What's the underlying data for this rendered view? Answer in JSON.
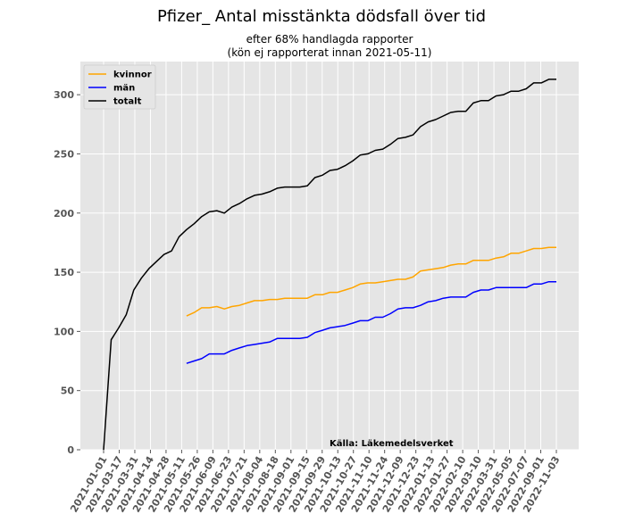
{
  "chart_data": {
    "type": "line",
    "title": "Pfizer_ Antal misstänkta dödsfall över tid",
    "subtitle_lines": [
      "efter 68% handlagda rapporter",
      "(kön ej rapporterat innan 2021-05-11)"
    ],
    "annotation": "Källa: Läkemedelsverket",
    "ylim": [
      0,
      328
    ],
    "y_ticks": [
      0,
      50,
      100,
      150,
      200,
      250,
      300
    ],
    "grid": true,
    "legend_position": "top-left",
    "x_tick_labels": [
      "2021-01-01",
      "2021-03-17",
      "2021-03-31",
      "2021-04-14",
      "2021-04-28",
      "2021-05-11",
      "2021-05-26",
      "2021-06-09",
      "2021-06-23",
      "2021-07-21",
      "2021-08-04",
      "2021-08-18",
      "2021-09-01",
      "2021-09-15",
      "2021-09-29",
      "2021-10-13",
      "2021-10-27",
      "2021-11-10",
      "2021-11-24",
      "2021-12-09",
      "2021-12-23",
      "2022-01-13",
      "2022-01-27",
      "2022-02-10",
      "2022-03-10",
      "2022-03-31",
      "2022-05-05",
      "2022-07-07",
      "2022-09-01",
      "2022-11-03"
    ],
    "series": [
      {
        "name": "kvinnor",
        "color": "#ffa500",
        "x": [
          11,
          12,
          13,
          14,
          15,
          16,
          17,
          18,
          19,
          20,
          21,
          22,
          23,
          24,
          25,
          26,
          27,
          28,
          29,
          30,
          31,
          32,
          33,
          34,
          35,
          36,
          37,
          38,
          39,
          40,
          41,
          42,
          43,
          44,
          45,
          46,
          47,
          48,
          49,
          50,
          51,
          52,
          53,
          54,
          55,
          56,
          57,
          58,
          59,
          60,
          61,
          62,
          63,
          64,
          65,
          66,
          67,
          68,
          69,
          70
        ],
        "values": [
          113,
          116,
          120,
          120,
          121,
          119,
          121,
          122,
          124,
          126,
          126,
          127,
          127,
          128,
          128,
          128,
          128,
          131,
          131,
          133,
          133,
          135,
          137,
          140,
          141,
          141,
          142,
          143,
          144,
          144,
          146,
          151,
          152,
          153,
          154,
          156,
          157,
          157,
          160,
          160,
          160,
          162,
          163,
          166,
          166,
          168,
          170,
          170,
          171,
          171,
          null,
          null,
          null,
          null,
          null,
          null,
          null,
          null,
          null,
          null
        ]
      },
      {
        "name": "män",
        "color": "#0000ff",
        "x": [
          11,
          12,
          13,
          14,
          15,
          16,
          17,
          18,
          19,
          20,
          21,
          22,
          23,
          24,
          25,
          26,
          27,
          28,
          29,
          30,
          31,
          32,
          33,
          34,
          35,
          36,
          37,
          38,
          39,
          40,
          41,
          42,
          43,
          44,
          45,
          46,
          47,
          48,
          49,
          50,
          51,
          52,
          53,
          54,
          55,
          56,
          57,
          58,
          59,
          60
        ],
        "values": [
          73,
          75,
          77,
          81,
          81,
          81,
          84,
          86,
          88,
          89,
          90,
          91,
          94,
          94,
          94,
          94,
          95,
          99,
          101,
          103,
          104,
          105,
          107,
          109,
          109,
          112,
          112,
          115,
          119,
          120,
          120,
          122,
          125,
          126,
          128,
          129,
          129,
          129,
          133,
          135,
          135,
          137,
          137,
          137,
          137,
          137,
          140,
          140,
          142,
          142
        ]
      },
      {
        "name": "totalt",
        "color": "#000000",
        "x": [
          0,
          1,
          2,
          3,
          4,
          5,
          6,
          7,
          8,
          9,
          10,
          11,
          12,
          13,
          14,
          15,
          16,
          17,
          18,
          19,
          20,
          21,
          22,
          23,
          24,
          25,
          26,
          27,
          28,
          29,
          30,
          31,
          32,
          33,
          34,
          35,
          36,
          37,
          38,
          39,
          40,
          41,
          42,
          43,
          44,
          45,
          46,
          47,
          48,
          49,
          50,
          51,
          52,
          53,
          54,
          55,
          56,
          57,
          58,
          59,
          60
        ],
        "values": [
          0,
          93,
          103,
          114,
          135,
          145,
          153,
          159,
          165,
          168,
          180,
          186,
          191,
          197,
          201,
          202,
          200,
          205,
          208,
          212,
          215,
          216,
          218,
          221,
          222,
          222,
          222,
          223,
          230,
          232,
          236,
          237,
          240,
          244,
          249,
          250,
          253,
          254,
          258,
          263,
          264,
          266,
          273,
          277,
          279,
          282,
          285,
          286,
          286,
          293,
          295,
          295,
          299,
          300,
          303,
          303,
          305,
          310,
          310,
          313,
          313
        ]
      }
    ]
  }
}
